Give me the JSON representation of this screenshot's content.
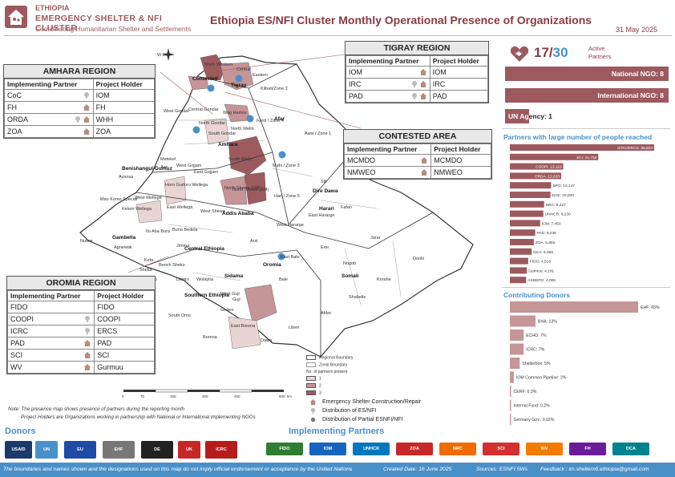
{
  "header": {
    "org_country": "ETHIOPIA",
    "org_name": "EMERGENCY SHELTER & NFI CLUSTER",
    "org_tagline": "Coordinating Humanitarian Shelter and Settlements",
    "title": "Ethiopia ES/NFI Cluster Monthly Operational Presence of Organizations",
    "date": "31 May 2025"
  },
  "amhara": {
    "title": "AMHARA REGION",
    "col1": "Implementing Partner",
    "col2": "Project Holder",
    "rows": [
      {
        "partner": "CoC",
        "holder": "IOM",
        "icons": [
          "bulb"
        ]
      },
      {
        "partner": "FH",
        "holder": "FH",
        "icons": [
          "house"
        ]
      },
      {
        "partner": "ORDA",
        "holder": "WHH",
        "icons": [
          "house",
          "bulb"
        ]
      },
      {
        "partner": "ZOA",
        "holder": "ZOA",
        "icons": [
          "house"
        ]
      }
    ]
  },
  "tigray": {
    "title": "TIGRAY REGION",
    "col1": "Implementing Partner",
    "col2": "Project Holder",
    "rows": [
      {
        "partner": "IOM",
        "holder": "IOM",
        "icons": [
          "house"
        ]
      },
      {
        "partner": "IRC",
        "holder": "IRC",
        "icons": [
          "house",
          "bulb"
        ]
      },
      {
        "partner": "PAD",
        "holder": "PAD",
        "icons": [
          "house",
          "bulb"
        ]
      }
    ]
  },
  "contested": {
    "title": "CONTESTED AREA",
    "col1": "Implementing Partner",
    "col2": "Project Holder",
    "rows": [
      {
        "partner": "MCMDO",
        "holder": "MCMDO",
        "icons": [
          "house"
        ]
      },
      {
        "partner": "NMWEO",
        "holder": "NMWEO",
        "icons": [
          "house"
        ]
      }
    ]
  },
  "oromia": {
    "title": "OROMIA REGION",
    "col1": "Implementing Partner",
    "col2": "Project Holder",
    "rows": [
      {
        "partner": "FIDO",
        "holder": "FIDO",
        "icons": []
      },
      {
        "partner": "COOPI",
        "holder": "COOPI",
        "icons": [
          "bulb"
        ]
      },
      {
        "partner": "ICRC",
        "holder": "ERCS",
        "icons": [
          "bulb"
        ]
      },
      {
        "partner": "PAD",
        "holder": "PAD",
        "icons": [
          "house"
        ]
      },
      {
        "partner": "SCI",
        "holder": "SCI",
        "icons": [
          "house"
        ]
      },
      {
        "partner": "WV",
        "holder": "Gurmuu",
        "icons": [
          "house"
        ]
      }
    ]
  },
  "summary": {
    "active": "17",
    "total": "30",
    "active_label_1": "Active",
    "active_label_2": "Partners",
    "national_ngo": "National NGO: 8",
    "international_ngo": "International NGO: 8",
    "un_agency_a": "UN Ag",
    "un_agency_b": "ency: 1"
  },
  "large_partners": {
    "title": "Partners with large number of people reached",
    "bars": [
      {
        "label": "ICRC/ERCS: 35,503",
        "value": 35503
      },
      {
        "label": "SCI: 21,758",
        "value": 21758
      },
      {
        "label": "COOPI: 13,119",
        "value": 13119
      },
      {
        "label": "ORDA: 12,633",
        "value": 12633
      },
      {
        "label": "BPO: 10,147",
        "value": 10147
      },
      {
        "label": "DAE: 10,000",
        "value": 10000
      },
      {
        "label": "NRC: 8,427",
        "value": 8427
      },
      {
        "label": "UNHCR: 8,230",
        "value": 8230
      },
      {
        "label": "IOM: 7,450",
        "value": 7450
      },
      {
        "label": "PAD: 6,238",
        "value": 6238
      },
      {
        "label": "ZOA: 5,892",
        "value": 5892
      },
      {
        "label": "DCA: 5,366",
        "value": 5366
      },
      {
        "label": "FIDO: 4,516",
        "value": 4516
      },
      {
        "label": "Gurmuu: 4,181",
        "value": 4181
      },
      {
        "label": "ASDEPO: 4,006",
        "value": 4006
      }
    ]
  },
  "donors_chart": {
    "title": "Contributing Donors",
    "bars": [
      {
        "label": "EHF: 65%",
        "value": 65
      },
      {
        "label": "BHA: 13%",
        "value": 13
      },
      {
        "label": "ECHO: 7%",
        "value": 7
      },
      {
        "label": "ICRC: 7%",
        "value": 7
      },
      {
        "label": "Shelterbox: 5%",
        "value": 5
      },
      {
        "label": "IOM Common Pipeline: 2%",
        "value": 2
      },
      {
        "label": "CERF: 0.3%",
        "value": 0.3
      },
      {
        "label": "Internal Fund: 0.2%",
        "value": 0.2
      },
      {
        "label": "Germany Gov.: 0.02%",
        "value": 0.02
      }
    ]
  },
  "map": {
    "region_labels": [
      "North Western",
      "Central",
      "Eastern",
      "Kilbati/Zone 2",
      "Tigray",
      "Contested",
      "West Gondar",
      "Central Gondar",
      "North Gondar",
      "Wag Hamra",
      "South Gondar",
      "Amhara",
      "North Wello",
      "Afar",
      "Awsi / Zone 1",
      "Fanti / Zone 4",
      "South Wello",
      "Mahi / Zone 3",
      "Metekel",
      "Awi",
      "West Gojjam",
      "East Gojjam",
      "Benishangul Gumuz",
      "Assosa",
      "Horo Guduru Wellega",
      "North Shewa (OR)",
      "North Shewa (AM)",
      "Hari / Zone 5",
      "Siti",
      "Dire Dawa",
      "Harari",
      "East Hararge",
      "Fafan",
      "Mao Komo Special",
      "West Wellega",
      "Kelem Wellega",
      "East Wellega",
      "West Shewa",
      "Addis Ababa",
      "West Hararge",
      "Jarar",
      "Ilu Aba Bora",
      "Buno Bedele",
      "Jimma",
      "Gambella",
      "Agnewak",
      "Nuwer",
      "Kefa",
      "Arsi",
      "Erer",
      "Doolo",
      "Nogob",
      "Central Ethiopia",
      "Oromia",
      "Bale",
      "East Bale",
      "Somali",
      "Korahe",
      "Sheka",
      "Bench Sheko",
      "West Omo",
      "Dawro",
      "Wolayita",
      "Sidama",
      "Southern Ethiopia",
      "South Omo",
      "Gedeo",
      "West Guji",
      "Guji",
      "Shabelle",
      "Afder",
      "Liben",
      "Borena",
      "East Borena",
      "Dawa"
    ],
    "scale_ticks": [
      "0",
      "75",
      "150",
      "300",
      "450",
      "600"
    ],
    "scale_unit": "km",
    "compass": "W E S"
  },
  "legend": {
    "regional_boundary": "Regional Boundary",
    "zonal_boundary": "Zonal Boundary",
    "partners_present": "No. of partners present",
    "levels": [
      "1",
      "2",
      "3"
    ],
    "level_colors": [
      "#e9d4d4",
      "#c69597",
      "#9c5a5f"
    ],
    "item1": "Emergency Shelter Construction/Repair",
    "item2": "Distribution of ES/NFI",
    "item3": "Distribution of Partial ESNFI/NFI"
  },
  "notes": {
    "line1": "Note: The presence map shows presence of partners during the reporting month",
    "line2": "Project Holders are Organizations working in partnership with National or International implementing NGOs"
  },
  "bottom": {
    "donors_title": "Donors",
    "ip_title": "Implementing Partners",
    "donor_logos": [
      "USAID",
      "UN",
      "EU",
      "EHF",
      "DE",
      "UK",
      "ICRC"
    ],
    "ip_logos": [
      "FIDO",
      "IOM",
      "UNHCR",
      "ZOA",
      "NRC",
      "SCI",
      "WV",
      "FH",
      "DCA"
    ]
  },
  "footer": {
    "disclaimer": "The boundaries and names shown and the designations used on this map do not imply official endorsement or acceptance by the United Nations",
    "created": "Created Date: 16 June 2025",
    "sources": "Sources: ESNFI 5Ws",
    "feedback": "Feedback : im.shelternfi.ethiopia@gmail.com"
  },
  "colors": {
    "brand": "#9c5a5f",
    "accent": "#4a90c8",
    "bar_fill": "#9c5a5f"
  }
}
